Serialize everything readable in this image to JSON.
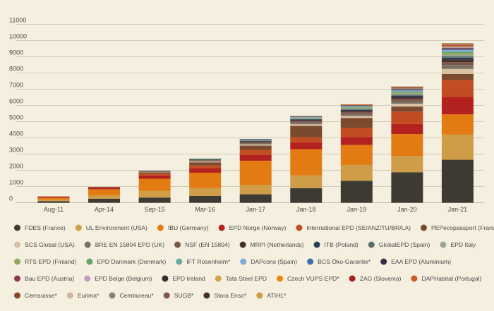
{
  "chart_data": {
    "type": "bar",
    "stacked": true,
    "title": "",
    "xlabel": "",
    "ylabel": "",
    "ylim": [
      0,
      11000
    ],
    "y_ticks": [
      0,
      1000,
      2000,
      3000,
      4000,
      5000,
      6000,
      7000,
      8000,
      9000,
      10000,
      11000
    ],
    "grid": true,
    "legend_position": "bottom",
    "categories": [
      "Aug-11",
      "Apr-14",
      "Sep-15",
      "Mar-16",
      "Jan-17",
      "Jan-18",
      "Jan-19",
      "Jan-20",
      "Jan-21"
    ],
    "series": [
      {
        "name": "FDES (France)",
        "color": "#3d3a33",
        "values": [
          100,
          250,
          320,
          420,
          520,
          900,
          1350,
          1880,
          2650
        ]
      },
      {
        "name": "UL Environment (USA)",
        "color": "#cf9d48",
        "values": [
          90,
          200,
          400,
          480,
          570,
          780,
          980,
          1010,
          1550
        ]
      },
      {
        "name": "IBU (Germany)",
        "color": "#e27c12",
        "values": [
          120,
          380,
          760,
          950,
          1500,
          1620,
          1230,
          1350,
          1250
        ]
      },
      {
        "name": "EPD Norge (Norway)",
        "color": "#b3221e",
        "values": [
          60,
          100,
          200,
          280,
          360,
          420,
          500,
          620,
          1070
        ]
      },
      {
        "name": "International EPD (SE/ANZ/TU/BR/LA)",
        "color": "#c24d22",
        "values": [
          20,
          30,
          120,
          160,
          310,
          320,
          550,
          760,
          1050
        ]
      },
      {
        "name": "PEPecopassport (France)",
        "color": "#7a4a2e",
        "values": [
          0,
          20,
          80,
          200,
          260,
          700,
          620,
          310,
          370
        ]
      },
      {
        "name": "SCS Global (USA)",
        "color": "#d9bfa4",
        "values": [
          0,
          0,
          20,
          50,
          80,
          100,
          120,
          180,
          310
        ]
      },
      {
        "name": "BRE EN 15804 EPD (UK)",
        "color": "#7a7064",
        "values": [
          0,
          0,
          30,
          60,
          90,
          110,
          120,
          150,
          240
        ]
      },
      {
        "name": "NSF (EN 15804)",
        "color": "#7b564d",
        "values": [
          0,
          0,
          10,
          30,
          50,
          80,
          120,
          150,
          180
        ]
      },
      {
        "name": "MRPI (Netherlands)",
        "color": "#4b2f2c",
        "values": [
          0,
          0,
          10,
          20,
          40,
          60,
          80,
          110,
          160
        ]
      },
      {
        "name": "ITB (Poland)",
        "color": "#2c3e56",
        "values": [
          0,
          0,
          10,
          20,
          30,
          40,
          60,
          80,
          110
        ]
      },
      {
        "name": "GlobalEPD (Spain)",
        "color": "#5b6e6e",
        "values": [
          0,
          0,
          10,
          20,
          30,
          40,
          50,
          70,
          100
        ]
      },
      {
        "name": "EPD Italy",
        "color": "#9aa88f",
        "values": [
          0,
          0,
          0,
          10,
          20,
          30,
          40,
          60,
          90
        ]
      },
      {
        "name": "RTS EPD (Finland)",
        "color": "#95a862",
        "values": [
          0,
          0,
          0,
          10,
          20,
          30,
          40,
          50,
          80
        ]
      },
      {
        "name": "EPD Danmark (Denmark)",
        "color": "#6aa06a",
        "values": [
          0,
          0,
          0,
          10,
          10,
          20,
          30,
          50,
          80
        ]
      },
      {
        "name": "IFT Rosenheim*",
        "color": "#6aa7a0",
        "values": [
          0,
          0,
          0,
          10,
          10,
          20,
          30,
          50,
          70
        ]
      },
      {
        "name": "DAPcons (Spain)",
        "color": "#7eaed6",
        "values": [
          0,
          0,
          0,
          0,
          10,
          20,
          30,
          40,
          60
        ]
      },
      {
        "name": "BCS Öko-Garantie*",
        "color": "#3b6fa8",
        "values": [
          0,
          0,
          0,
          0,
          10,
          10,
          20,
          30,
          50
        ]
      },
      {
        "name": "EAA EPD (Aluminium)",
        "color": "#3d2846",
        "values": [
          0,
          0,
          0,
          0,
          10,
          10,
          20,
          30,
          40
        ]
      },
      {
        "name": "Bau EPD (Austria)",
        "color": "#8a3a52",
        "values": [
          0,
          0,
          0,
          0,
          0,
          10,
          20,
          30,
          40
        ]
      },
      {
        "name": "EPD Belge (Belgium)",
        "color": "#c0a0c0",
        "values": [
          0,
          0,
          0,
          0,
          0,
          10,
          10,
          20,
          40
        ]
      },
      {
        "name": "EPD Ireland",
        "color": "#2e2e2e",
        "values": [
          0,
          0,
          0,
          0,
          0,
          10,
          10,
          20,
          30
        ]
      },
      {
        "name": "Tata Steel EPD",
        "color": "#d4a24c",
        "values": [
          0,
          0,
          0,
          0,
          0,
          0,
          10,
          20,
          30
        ]
      },
      {
        "name": "Czech VUPS EPD*",
        "color": "#e88a12",
        "values": [
          0,
          0,
          0,
          0,
          0,
          0,
          10,
          20,
          30
        ]
      },
      {
        "name": "ZAG (Slovenia)",
        "color": "#a8201e",
        "values": [
          0,
          0,
          0,
          0,
          0,
          0,
          10,
          10,
          20
        ]
      },
      {
        "name": "DAPHabitat (Portugal)",
        "color": "#cc5a24",
        "values": [
          0,
          0,
          0,
          0,
          0,
          0,
          10,
          10,
          20
        ]
      },
      {
        "name": "Cemsuisse*",
        "color": "#8a4a26",
        "values": [
          0,
          0,
          0,
          0,
          0,
          0,
          0,
          10,
          20
        ]
      },
      {
        "name": "Eurima*",
        "color": "#d2b49c",
        "values": [
          0,
          0,
          0,
          0,
          0,
          0,
          0,
          10,
          20
        ]
      },
      {
        "name": "Cembureau*",
        "color": "#8a8278",
        "values": [
          0,
          0,
          0,
          0,
          0,
          0,
          0,
          10,
          20
        ]
      },
      {
        "name": "SUGB*",
        "color": "#7c5850",
        "values": [
          0,
          0,
          0,
          0,
          0,
          0,
          0,
          10,
          20
        ]
      },
      {
        "name": "Stora Enso*",
        "color": "#4a3028",
        "values": [
          0,
          0,
          0,
          0,
          0,
          0,
          0,
          10,
          20
        ]
      },
      {
        "name": "ATIHL*",
        "color": "#cf9d48",
        "values": [
          0,
          0,
          0,
          0,
          0,
          0,
          0,
          0,
          20
        ]
      }
    ]
  }
}
